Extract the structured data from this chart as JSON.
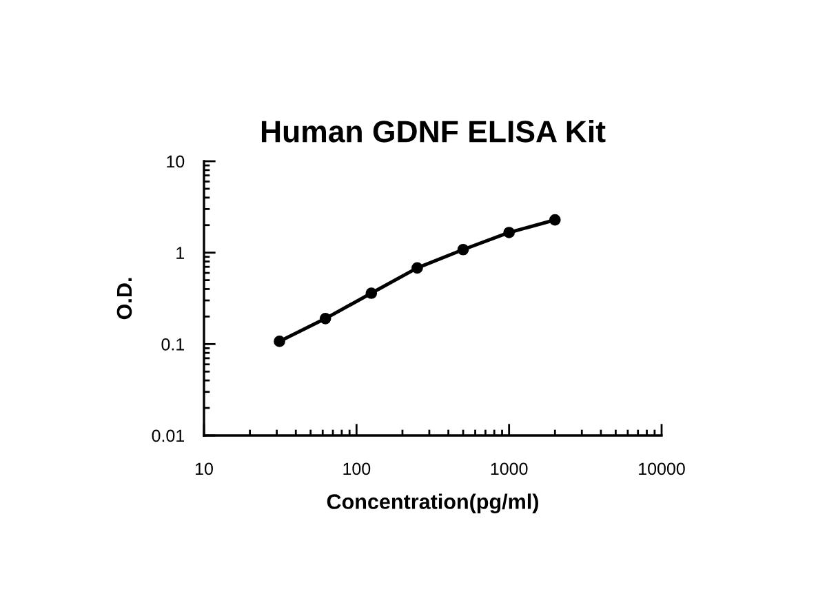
{
  "chart_data": {
    "type": "line",
    "title": "Human GDNF ELISA Kit",
    "xlabel": "Concentration(pg/ml)",
    "ylabel": "O.D.",
    "x": [
      31.25,
      62.5,
      125,
      250,
      500,
      1000,
      2000
    ],
    "series": [
      {
        "color": "#000000",
        "values": [
          0.107,
          0.19,
          0.36,
          0.68,
          1.08,
          1.66,
          2.28
        ]
      }
    ],
    "xlim": [
      10,
      10000
    ],
    "ylim": [
      0.01,
      10
    ],
    "xticks": [
      10,
      100,
      1000,
      10000
    ],
    "yticks": [
      0.01,
      0.1,
      1,
      10
    ],
    "log": "xy",
    "grid": false,
    "marker": "circle",
    "line_style": "solid"
  }
}
